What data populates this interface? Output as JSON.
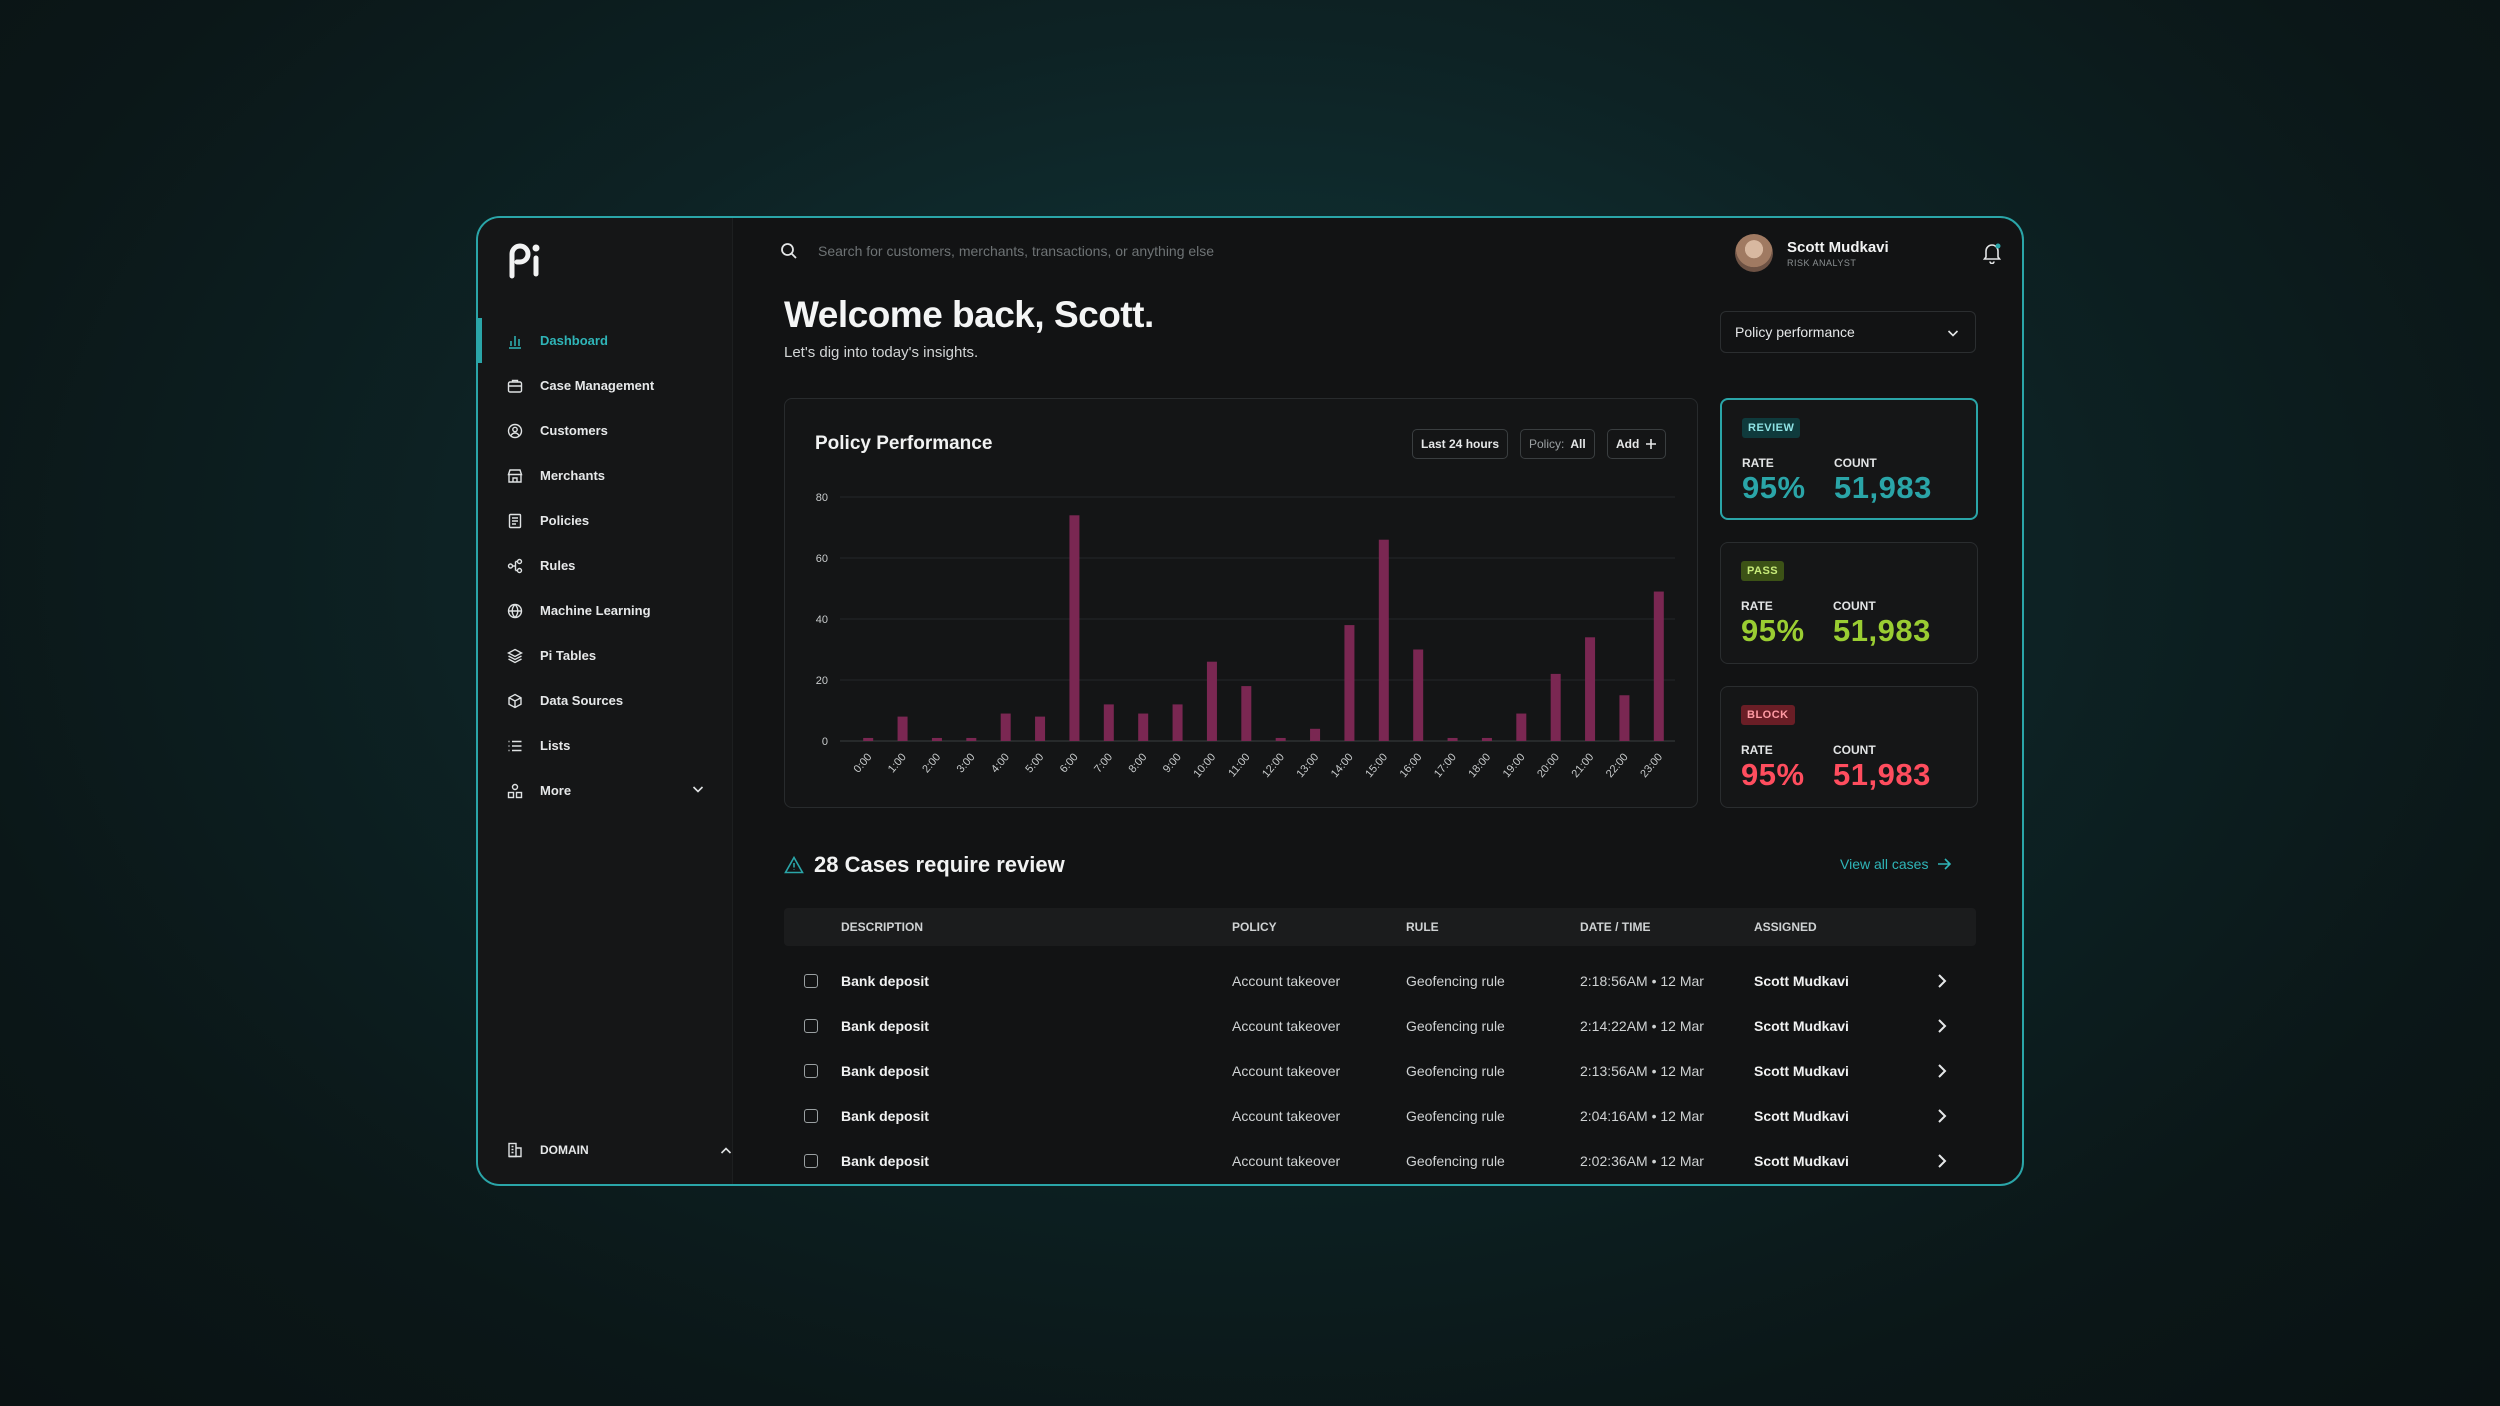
{
  "colors": {
    "accent": "#2aa5a8",
    "bar": "#7a2752",
    "review": "#2aa5a8",
    "pass": "#9acd32",
    "block": "#ff4d5e"
  },
  "sidebar": {
    "items": [
      {
        "label": "Dashboard",
        "icon": "bar-chart-icon",
        "active": true
      },
      {
        "label": "Case Management",
        "icon": "briefcase-icon"
      },
      {
        "label": "Customers",
        "icon": "user-circle-icon"
      },
      {
        "label": "Merchants",
        "icon": "store-icon"
      },
      {
        "label": "Policies",
        "icon": "document-icon"
      },
      {
        "label": "Rules",
        "icon": "flow-icon"
      },
      {
        "label": "Machine Learning",
        "icon": "globe-icon"
      },
      {
        "label": "Pi Tables",
        "icon": "layers-icon"
      },
      {
        "label": "Data Sources",
        "icon": "cube-icon"
      },
      {
        "label": "Lists",
        "icon": "list-icon"
      },
      {
        "label": "More",
        "icon": "shapes-icon"
      }
    ],
    "domain_label": "DOMAIN"
  },
  "search": {
    "placeholder": "Search for customers, merchants, transactions, or anything else"
  },
  "user": {
    "name": "Scott Mudkavi",
    "role": "RISK ANALYST"
  },
  "header": {
    "welcome": "Welcome back, Scott.",
    "subtitle": "Let's dig into today's insights.",
    "select_value": "Policy performance"
  },
  "card": {
    "title": "Policy Performance",
    "chip_range": "Last 24 hours",
    "chip_policy_label": "Policy:",
    "chip_policy_value": "All",
    "chip_add": "Add"
  },
  "chart_data": {
    "type": "bar",
    "categories": [
      "0:00",
      "1:00",
      "2:00",
      "3:00",
      "4:00",
      "5:00",
      "6:00",
      "7:00",
      "8:00",
      "9:00",
      "10:00",
      "11:00",
      "12:00",
      "13:00",
      "14:00",
      "15:00",
      "16:00",
      "17:00",
      "18:00",
      "19:00",
      "20:00",
      "21:00",
      "22:00",
      "23:00"
    ],
    "values": [
      1,
      8,
      1,
      1,
      9,
      8,
      74,
      12,
      9,
      12,
      26,
      18,
      1,
      4,
      38,
      66,
      30,
      1,
      1,
      9,
      22,
      34,
      15,
      49
    ],
    "yticks": [
      0,
      20,
      40,
      60,
      80
    ],
    "ylim": [
      0,
      80
    ],
    "grid": true
  },
  "stats": [
    {
      "badge": "REVIEW",
      "rate_label": "RATE",
      "rate": "95%",
      "count_label": "COUNT",
      "count": "51,983"
    },
    {
      "badge": "PASS",
      "rate_label": "RATE",
      "rate": "95%",
      "count_label": "COUNT",
      "count": "51,983"
    },
    {
      "badge": "BLOCK",
      "rate_label": "RATE",
      "rate": "95%",
      "count_label": "COUNT",
      "count": "51,983"
    }
  ],
  "cases": {
    "title": "28 Cases require review",
    "view_all": "View all cases",
    "columns": [
      "DESCRIPTION",
      "POLICY",
      "RULE",
      "DATE / TIME",
      "ASSIGNED"
    ],
    "rows": [
      {
        "description": "Bank deposit",
        "policy": "Account takeover",
        "rule": "Geofencing rule",
        "datetime": "2:18:56AM • 12 Mar",
        "assigned": "Scott Mudkavi"
      },
      {
        "description": "Bank deposit",
        "policy": "Account takeover",
        "rule": "Geofencing rule",
        "datetime": "2:14:22AM • 12 Mar",
        "assigned": "Scott Mudkavi"
      },
      {
        "description": "Bank deposit",
        "policy": "Account takeover",
        "rule": "Geofencing rule",
        "datetime": "2:13:56AM • 12 Mar",
        "assigned": "Scott Mudkavi"
      },
      {
        "description": "Bank deposit",
        "policy": "Account takeover",
        "rule": "Geofencing rule",
        "datetime": "2:04:16AM • 12 Mar",
        "assigned": "Scott Mudkavi"
      },
      {
        "description": "Bank deposit",
        "policy": "Account takeover",
        "rule": "Geofencing rule",
        "datetime": "2:02:36AM • 12 Mar",
        "assigned": "Scott Mudkavi"
      }
    ]
  }
}
